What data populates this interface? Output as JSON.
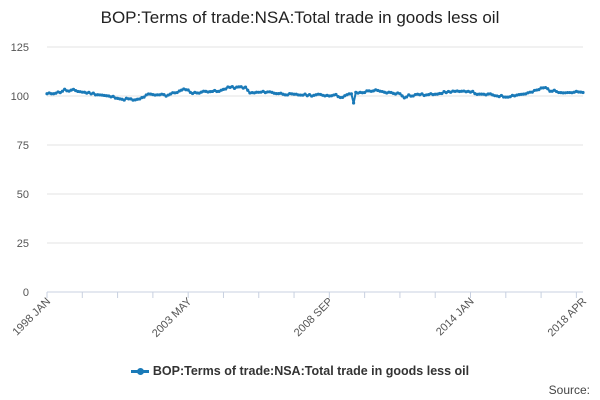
{
  "colors": {
    "series": "#1a7ab8",
    "grid": "#e3e3e3",
    "axis": "#c8d0e0"
  },
  "chart_data": {
    "type": "line",
    "title": "BOP:Terms of trade:NSA:Total trade in goods less oil",
    "xlabel": "",
    "ylabel": "",
    "ylim": [
      0,
      125
    ],
    "yticks": [
      0,
      25,
      50,
      75,
      100,
      125
    ],
    "xlim": [
      0,
      243
    ],
    "xticks": [
      {
        "label": "1998 JAN",
        "index": 0
      },
      {
        "label": "2003 MAY",
        "index": 64
      },
      {
        "label": "2008 SEP",
        "index": 128
      },
      {
        "label": "2014 JAN",
        "index": 192
      },
      {
        "label": "2018 APR",
        "index": 243
      }
    ],
    "x_minor_ticks": [
      0,
      16,
      32,
      48,
      64,
      80,
      96,
      112,
      128,
      144,
      160,
      176,
      192,
      208,
      224,
      240
    ],
    "series": [
      {
        "name": "BOP:Terms of trade:NSA:Total trade in goods less oil",
        "key_points": [
          [
            0,
            101.0
          ],
          [
            3,
            101.5
          ],
          [
            6,
            102.0
          ],
          [
            8,
            103.2
          ],
          [
            10,
            102.4
          ],
          [
            12,
            103.0
          ],
          [
            16,
            102.0
          ],
          [
            20,
            101.4
          ],
          [
            24,
            100.6
          ],
          [
            28,
            99.8
          ],
          [
            32,
            99.2
          ],
          [
            34,
            98.0
          ],
          [
            36,
            98.6
          ],
          [
            40,
            97.8
          ],
          [
            42,
            98.4
          ],
          [
            44,
            99.6
          ],
          [
            46,
            100.8
          ],
          [
            50,
            100.4
          ],
          [
            52,
            101.2
          ],
          [
            54,
            100.2
          ],
          [
            56,
            101.0
          ],
          [
            60,
            102.4
          ],
          [
            63,
            103.6
          ],
          [
            66,
            101.4
          ],
          [
            70,
            102.0
          ],
          [
            74,
            102.6
          ],
          [
            78,
            102.2
          ],
          [
            80,
            103.4
          ],
          [
            82,
            104.5
          ],
          [
            86,
            104.2
          ],
          [
            88,
            104.6
          ],
          [
            90,
            104.2
          ],
          [
            92,
            101.5
          ],
          [
            96,
            101.8
          ],
          [
            100,
            102.2
          ],
          [
            104,
            101.4
          ],
          [
            108,
            101.0
          ],
          [
            112,
            100.6
          ],
          [
            116,
            100.6
          ],
          [
            120,
            100.4
          ],
          [
            124,
            100.6
          ],
          [
            128,
            100.2
          ],
          [
            130,
            100.8
          ],
          [
            132,
            100.0
          ],
          [
            134,
            99.2
          ],
          [
            136,
            100.5
          ],
          [
            138,
            101.2
          ],
          [
            139,
            96.5
          ],
          [
            140,
            101.5
          ],
          [
            143,
            101.8
          ],
          [
            146,
            102.6
          ],
          [
            149,
            102.8
          ],
          [
            152,
            102.0
          ],
          [
            156,
            101.6
          ],
          [
            160,
            101.2
          ],
          [
            162,
            99.4
          ],
          [
            164,
            100.4
          ],
          [
            166,
            100.0
          ],
          [
            168,
            101.0
          ],
          [
            172,
            100.4
          ],
          [
            176,
            101.2
          ],
          [
            180,
            101.8
          ],
          [
            184,
            102.4
          ],
          [
            188,
            102.0
          ],
          [
            190,
            102.6
          ],
          [
            192,
            102.4
          ],
          [
            196,
            100.6
          ],
          [
            200,
            100.8
          ],
          [
            204,
            100.2
          ],
          [
            208,
            99.6
          ],
          [
            212,
            100.4
          ],
          [
            216,
            101.0
          ],
          [
            220,
            102.0
          ],
          [
            224,
            103.8
          ],
          [
            226,
            104.3
          ],
          [
            228,
            102.8
          ],
          [
            232,
            102.2
          ],
          [
            236,
            101.8
          ],
          [
            240,
            102.0
          ],
          [
            243,
            101.8
          ]
        ]
      }
    ],
    "legend": {
      "position": "bottom",
      "label": "BOP:Terms of trade:NSA:Total trade in goods less oil"
    },
    "source_label": "Source:"
  }
}
